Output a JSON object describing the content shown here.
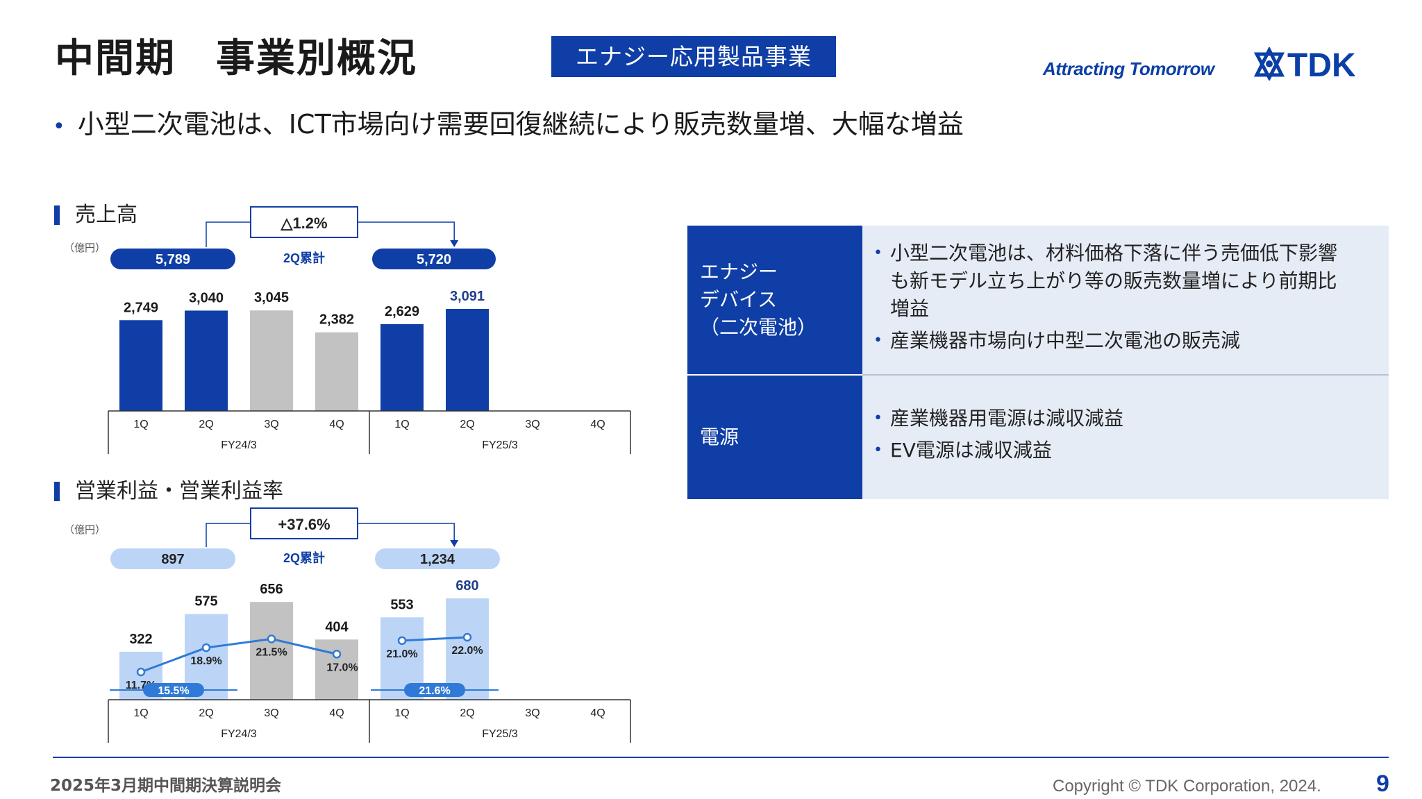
{
  "header": {
    "title": "中間期　事業別概況",
    "segment": "エナジー応用製品事業",
    "tagline": "Attracting Tomorrow",
    "logo_text": "TDK"
  },
  "subtitle": {
    "bullet": "•",
    "text": "小型二次電池は、ICT市場向け需要回復継続により販売数量増、大幅な増益"
  },
  "colors": {
    "brand_blue": "#0f3ea6",
    "gray_bar": "#c2c2c2",
    "light_blue_bar": "#bcd5f7",
    "line_blue": "#2f7ad6",
    "pill_light": "#bcd5f7"
  },
  "chart_data": [
    {
      "type": "bar",
      "title": "売上高",
      "unit": "（億円）",
      "categories": [
        "1Q",
        "2Q",
        "3Q",
        "4Q",
        "1Q",
        "2Q",
        "3Q",
        "4Q"
      ],
      "groups": [
        "FY24/3",
        "FY25/3"
      ],
      "values": [
        2749,
        3040,
        3045,
        2382,
        2629,
        3091,
        null,
        null
      ],
      "value_labels": [
        "2,749",
        "3,040",
        "3,045",
        "2,382",
        "2,629",
        "3,091",
        "",
        ""
      ],
      "bar_colors": [
        "#0f3ea6",
        "#0f3ea6",
        "#c2c2c2",
        "#c2c2c2",
        "#0f3ea6",
        "#0f3ea6",
        "",
        ""
      ],
      "cumulative": {
        "left": "5,789",
        "right": "5,720",
        "label": "2Q累計",
        "change": "△1.2%"
      }
    },
    {
      "type": "bar",
      "title": "営業利益・営業利益率",
      "unit": "（億円）",
      "categories": [
        "1Q",
        "2Q",
        "3Q",
        "4Q",
        "1Q",
        "2Q",
        "3Q",
        "4Q"
      ],
      "groups": [
        "FY24/3",
        "FY25/3"
      ],
      "values": [
        322,
        575,
        656,
        404,
        553,
        680,
        null,
        null
      ],
      "value_labels": [
        "322",
        "575",
        "656",
        "404",
        "553",
        "680",
        "",
        ""
      ],
      "bar_colors": [
        "#bcd5f7",
        "#bcd5f7",
        "#c2c2c2",
        "#c2c2c2",
        "#bcd5f7",
        "#bcd5f7",
        "",
        ""
      ],
      "margin_series": {
        "values": [
          11.7,
          18.9,
          21.5,
          17.0,
          21.0,
          22.0
        ],
        "labels": [
          "11.7%",
          "18.9%",
          "21.5%",
          "17.0%",
          "21.0%",
          "22.0%"
        ]
      },
      "half_margins": {
        "left": "15.5%",
        "right": "21.6%"
      },
      "cumulative": {
        "left": "897",
        "right": "1,234",
        "label": "2Q累計",
        "change": "+37.6%"
      }
    }
  ],
  "table": {
    "rows": [
      {
        "head": [
          "エナジー",
          "デバイス",
          "（二次電池）"
        ],
        "bullets": [
          [
            "小型二次電池は、材料価格下落に伴う売価低下影響",
            "も新モデル立ち上がり等の販売数量増により前期比",
            "増益"
          ],
          [
            "産業機器市場向け中型二次電池の販売減"
          ]
        ]
      },
      {
        "head": [
          "電源"
        ],
        "bullets": [
          [
            "産業機器用電源は減収減益"
          ],
          [
            "EV電源は減収減益"
          ]
        ]
      }
    ]
  },
  "footer": {
    "left": "2025年3月期中間期決算説明会",
    "copyright": "Copyright © TDK Corporation, 2024.",
    "page": "9"
  }
}
